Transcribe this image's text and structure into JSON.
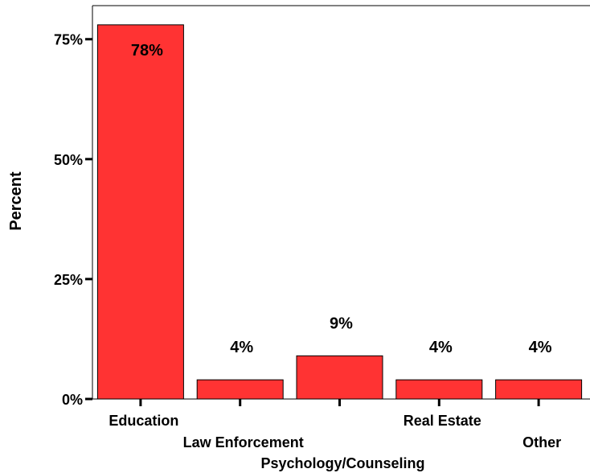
{
  "chart_data": {
    "type": "bar",
    "categories": [
      "Education",
      "Law Enforcement",
      "Psychology/Counseling",
      "Real Estate",
      "Other"
    ],
    "values": [
      78,
      4,
      9,
      4,
      4
    ],
    "data_labels": [
      "78%",
      "4%",
      "9%",
      "4%",
      "4%"
    ],
    "ylabel": "Percent",
    "ylim": [
      0,
      82
    ],
    "yticks": [
      0,
      25,
      50,
      75
    ],
    "ytick_labels": [
      "0%",
      "25%",
      "50%",
      "75%"
    ],
    "grid": false,
    "legend": "none",
    "bar_color": "#ff3333",
    "bar_edge_color": "#000000"
  }
}
